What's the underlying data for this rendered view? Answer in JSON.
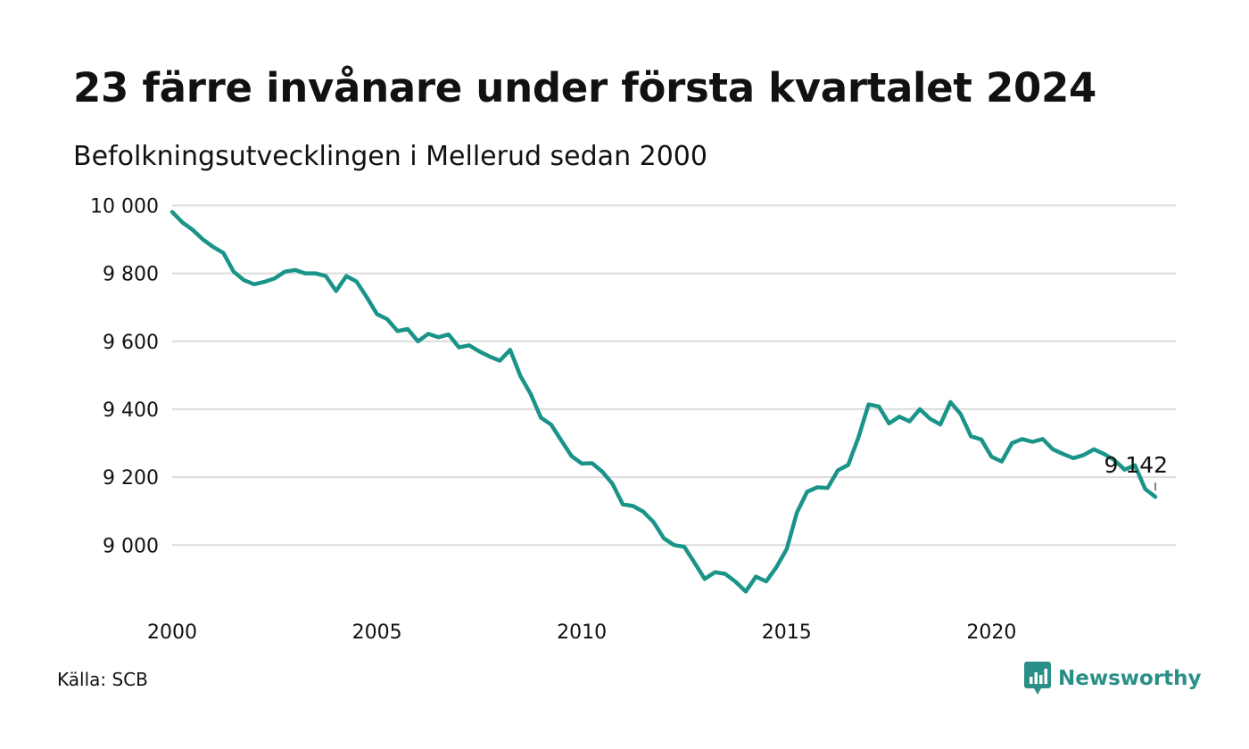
{
  "header": {
    "title": "23 färre invånare under första kvartalet 2024",
    "subtitle": "Befolkningsutvecklingen i Mellerud sedan 2000"
  },
  "footer": {
    "source": "Källa: SCB",
    "brand": "Newsworthy",
    "brand_icon": "newsworthy-logo-icon",
    "brand_color": "#2a8f87"
  },
  "chart_data": {
    "type": "line",
    "title": "23 färre invånare under första kvartalet 2024",
    "subtitle": "Befolkningsutvecklingen i Mellerud sedan 2000",
    "xlabel": "",
    "ylabel": "",
    "x_unit": "quarterly, decimal year",
    "xlim": [
      2000,
      2024.5
    ],
    "ylim": [
      8830,
      10030
    ],
    "x_ticks": [
      2000,
      2005,
      2010,
      2015,
      2020
    ],
    "x_tick_labels": [
      "2000",
      "2005",
      "2010",
      "2015",
      "2020"
    ],
    "y_ticks": [
      9000,
      9200,
      9400,
      9600,
      9800,
      10000
    ],
    "y_tick_labels": [
      "9 000",
      "9 200",
      "9 400",
      "9 600",
      "9 800",
      "10 000"
    ],
    "grid": "horizontal",
    "legend": "none",
    "line_color": "#1a9488",
    "grid_color": "#dcdcdc",
    "end_label": "9 142",
    "series": [
      {
        "x": [
          2000.0,
          2000.25,
          2000.5,
          2000.75,
          2001.0,
          2001.25,
          2001.5,
          2001.75,
          2002.0,
          2002.25,
          2002.5,
          2002.75,
          2003.0,
          2003.25,
          2003.5,
          2003.75,
          2004.0,
          2004.25,
          2004.5,
          2004.75,
          2005.0,
          2005.25,
          2005.5,
          2005.75,
          2006.0,
          2006.25,
          2006.5,
          2006.75,
          2007.0,
          2007.25,
          2007.5,
          2007.75,
          2008.0,
          2008.25,
          2008.5,
          2008.75,
          2009.0,
          2009.25,
          2009.5,
          2009.75,
          2010.0,
          2010.25,
          2010.5,
          2010.75,
          2011.0,
          2011.25,
          2011.5,
          2011.75,
          2012.0,
          2012.25,
          2012.5,
          2012.75,
          2013.0,
          2013.25,
          2013.5,
          2013.75,
          2014.0,
          2014.25,
          2014.5,
          2014.75,
          2015.0,
          2015.25,
          2015.5,
          2015.75,
          2016.0,
          2016.25,
          2016.5,
          2016.75,
          2017.0,
          2017.25,
          2017.5,
          2017.75,
          2018.0,
          2018.25,
          2018.5,
          2018.75,
          2019.0,
          2019.25,
          2019.5,
          2019.75,
          2020.0,
          2020.25,
          2020.5,
          2020.75,
          2021.0,
          2021.25,
          2021.5,
          2021.75,
          2022.0,
          2022.25,
          2022.5,
          2022.75,
          2023.0,
          2023.25,
          2023.5,
          2023.75,
          2024.0
        ],
        "y": [
          9981,
          9950,
          9928,
          9900,
          9878,
          9860,
          9805,
          9780,
          9768,
          9775,
          9785,
          9805,
          9810,
          9800,
          9800,
          9792,
          9748,
          9792,
          9776,
          9730,
          9680,
          9665,
          9630,
          9636,
          9600,
          9622,
          9612,
          9620,
          9582,
          9588,
          9570,
          9555,
          9543,
          9575,
          9498,
          9445,
          9375,
          9355,
          9308,
          9262,
          9240,
          9241,
          9216,
          9180,
          9120,
          9115,
          9098,
          9068,
          9020,
          9000,
          8995,
          8948,
          8900,
          8920,
          8915,
          8892,
          8863,
          8907,
          8893,
          8935,
          8988,
          9096,
          9157,
          9170,
          9168,
          9220,
          9236,
          9316,
          9414,
          9408,
          9358,
          9378,
          9364,
          9400,
          9372,
          9355,
          9421,
          9385,
          9320,
          9311,
          9260,
          9246,
          9300,
          9312,
          9304,
          9312,
          9282,
          9268,
          9256,
          9265,
          9282,
          9268,
          9250,
          9222,
          9235,
          9165,
          9142
        ]
      }
    ]
  }
}
